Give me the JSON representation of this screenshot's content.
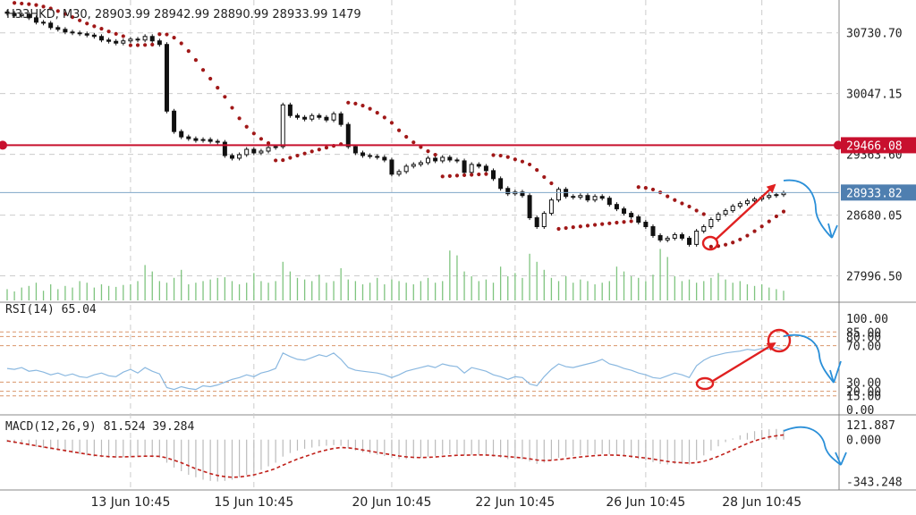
{
  "main_panel": {
    "header": "H33HKD, M30, 28903.99 28942.99 28890.99 28933.99 1479",
    "y_ticks": [
      "30730.70",
      "30047.15",
      "29363.60",
      "28680.05",
      "27996.50"
    ],
    "resistance_label": "29466.08",
    "current_label": "28933.82"
  },
  "rsi_panel": {
    "header": "RSI(14) 65.04",
    "y_ticks": [
      "100.00",
      "85.00",
      "80.00",
      "70.00",
      "30.00",
      "20.00",
      "15.00",
      "0.00"
    ]
  },
  "macd_panel": {
    "header": "MACD(12,26,9) 81.524 39.284",
    "y_ticks": [
      "121.887",
      "0.000",
      "-343.248"
    ]
  },
  "x_ticks": [
    "13 Jun 10:45",
    "15 Jun 10:45",
    "20 Jun 10:45",
    "22 Jun 10:45",
    "26 Jun 10:45",
    "28 Jun 10:45"
  ],
  "colors": {
    "candle": "#111111",
    "sar": "#a01818",
    "resistance": "#c8102e",
    "current": "#7fa6c8",
    "volume": "#7fc47f",
    "rsi": "#8ab8e0",
    "macd_signal": "#c0201a",
    "macd_hist": "#bbbbbb",
    "annotation_red": "#e02020",
    "annotation_blue": "#2a8fd8"
  },
  "chart_data": [
    {
      "type": "candlestick",
      "title": "H33HKD, M30, 28903.99 28942.99 28890.99 28933.99 1479",
      "ylim": [
        27700,
        31100
      ],
      "horizontal_lines": [
        {
          "value": 29466.08,
          "label": "29466.08"
        },
        {
          "value": 28933.82,
          "label": "28933.82"
        }
      ],
      "close": [
        30950,
        30925,
        30940,
        30900,
        30850,
        30840,
        30790,
        30770,
        30740,
        30730,
        30720,
        30705,
        30690,
        30650,
        30635,
        30615,
        30640,
        30660,
        30650,
        30690,
        30640,
        30600,
        29850,
        29620,
        29560,
        29540,
        29520,
        29530,
        29510,
        29500,
        29350,
        29320,
        29360,
        29420,
        29380,
        29400,
        29440,
        29450,
        29920,
        29800,
        29780,
        29760,
        29800,
        29780,
        29750,
        29820,
        29700,
        29450,
        29380,
        29350,
        29340,
        29330,
        29300,
        29140,
        29170,
        29230,
        29250,
        29270,
        29320,
        29290,
        29330,
        29300,
        29290,
        29160,
        29250,
        29230,
        29180,
        29090,
        28980,
        28920,
        28940,
        28900,
        28650,
        28550,
        28700,
        28850,
        28970,
        28890,
        28880,
        28900,
        28850,
        28890,
        28870,
        28800,
        28750,
        28700,
        28660,
        28600,
        28550,
        28450,
        28400,
        28420,
        28460,
        28420,
        28350,
        28500,
        28550,
        28630,
        28690,
        28730,
        28780,
        28810,
        28840,
        28860,
        28880,
        28900,
        28910,
        28930
      ],
      "volume_relative": [
        0.35,
        0.28,
        0.4,
        0.45,
        0.55,
        0.3,
        0.5,
        0.35,
        0.45,
        0.4,
        0.6,
        0.55,
        0.4,
        0.5,
        0.45,
        0.42,
        0.48,
        0.5,
        0.6,
        1.1,
        0.9,
        0.6,
        0.55,
        0.7,
        0.95,
        0.5,
        0.55,
        0.6,
        0.65,
        0.7,
        0.72,
        0.6,
        0.5,
        0.55,
        0.85,
        0.6,
        0.55,
        0.6,
        1.2,
        0.9,
        0.7,
        0.65,
        0.6,
        0.8,
        0.55,
        0.6,
        1.0,
        0.65,
        0.6,
        0.5,
        0.55,
        0.7,
        0.5,
        0.65,
        0.6,
        0.55,
        0.5,
        0.6,
        0.7,
        0.55,
        0.6,
        1.55,
        1.4,
        0.9,
        0.75,
        0.6,
        0.65,
        0.55,
        1.05,
        0.75,
        0.85,
        0.7,
        1.45,
        1.2,
        0.95,
        0.7,
        0.6,
        0.75,
        0.55,
        0.65,
        0.6,
        0.5,
        0.55,
        0.6,
        1.05,
        0.9,
        0.75,
        0.7,
        0.6,
        0.8,
        1.6,
        1.35,
        0.75,
        0.6,
        0.65,
        0.55,
        0.6,
        0.7,
        0.85,
        0.65,
        0.55,
        0.6,
        0.5,
        0.45,
        0.5,
        0.4,
        0.35,
        0.3
      ]
    },
    {
      "type": "line",
      "title": "RSI(14) 65.04",
      "ylim": [
        0,
        100
      ],
      "levels": [
        85,
        80,
        70,
        30,
        20,
        15
      ],
      "values": [
        45,
        44,
        46,
        42,
        43,
        41,
        38,
        40,
        37,
        39,
        36,
        35,
        38,
        40,
        37,
        36,
        41,
        44,
        40,
        46,
        42,
        39,
        24,
        22,
        25,
        23,
        22,
        26,
        25,
        27,
        30,
        33,
        35,
        38,
        36,
        40,
        42,
        45,
        62,
        58,
        55,
        54,
        57,
        60,
        58,
        62,
        55,
        46,
        43,
        42,
        41,
        40,
        38,
        35,
        38,
        42,
        44,
        46,
        48,
        46,
        50,
        48,
        47,
        40,
        46,
        44,
        42,
        38,
        36,
        33,
        36,
        35,
        28,
        26,
        36,
        44,
        50,
        47,
        46,
        48,
        50,
        52,
        55,
        50,
        48,
        45,
        43,
        40,
        38,
        35,
        34,
        37,
        40,
        38,
        35,
        48,
        54,
        58,
        60,
        62,
        63,
        64,
        66,
        65,
        67,
        66,
        68,
        65
      ]
    },
    {
      "type": "bar_line",
      "title": "MACD(12,26,9) 81.524 39.284",
      "ylim": [
        -400,
        160
      ],
      "histogram": [
        -20,
        -30,
        -40,
        -50,
        -60,
        -70,
        -80,
        -90,
        -100,
        -110,
        -120,
        -130,
        -140,
        -145,
        -150,
        -150,
        -145,
        -140,
        -135,
        -140,
        -145,
        -150,
        -190,
        -230,
        -260,
        -290,
        -310,
        -330,
        -340,
        -345,
        -340,
        -330,
        -310,
        -290,
        -270,
        -250,
        -220,
        -190,
        -140,
        -110,
        -90,
        -75,
        -65,
        -55,
        -50,
        -45,
        -50,
        -70,
        -90,
        -105,
        -115,
        -125,
        -135,
        -150,
        -160,
        -160,
        -155,
        -150,
        -140,
        -135,
        -125,
        -120,
        -120,
        -130,
        -125,
        -125,
        -130,
        -140,
        -150,
        -160,
        -160,
        -162,
        -180,
        -200,
        -190,
        -170,
        -150,
        -140,
        -135,
        -128,
        -125,
        -120,
        -118,
        -122,
        -130,
        -140,
        -150,
        -160,
        -170,
        -185,
        -200,
        -205,
        -200,
        -200,
        -205,
        -170,
        -130,
        -90,
        -55,
        -20,
        10,
        35,
        55,
        70,
        80,
        85,
        88,
        82
      ],
      "signal": [
        -10,
        -20,
        -30,
        -40,
        -50,
        -60,
        -70,
        -80,
        -90,
        -100,
        -110,
        -120,
        -128,
        -135,
        -140,
        -142,
        -142,
        -140,
        -138,
        -136,
        -136,
        -138,
        -150,
        -170,
        -190,
        -215,
        -240,
        -260,
        -280,
        -295,
        -305,
        -310,
        -308,
        -300,
        -290,
        -275,
        -258,
        -238,
        -210,
        -185,
        -160,
        -140,
        -120,
        -100,
        -85,
        -72,
        -65,
        -68,
        -75,
        -85,
        -95,
        -105,
        -115,
        -125,
        -135,
        -142,
        -146,
        -148,
        -146,
        -143,
        -138,
        -133,
        -129,
        -128,
        -127,
        -126,
        -127,
        -130,
        -135,
        -140,
        -145,
        -150,
        -158,
        -168,
        -172,
        -170,
        -164,
        -157,
        -150,
        -143,
        -137,
        -132,
        -128,
        -127,
        -128,
        -132,
        -138,
        -145,
        -152,
        -160,
        -170,
        -180,
        -186,
        -190,
        -193,
        -190,
        -178,
        -160,
        -138,
        -112,
        -85,
        -58,
        -32,
        -10,
        8,
        22,
        32,
        39
      ]
    }
  ]
}
